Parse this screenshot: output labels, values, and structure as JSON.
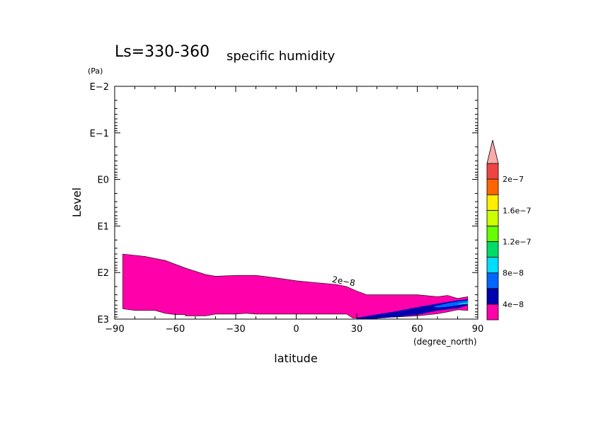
{
  "chart_data": {
    "type": "contour",
    "title": "Ls=330-360",
    "subtitle": "specific humidity",
    "xlabel": "latitude",
    "xunit": "(degree_north)",
    "ylabel": "Level",
    "yunit": "(Pa)",
    "xlim": [
      -90,
      90
    ],
    "ylim": [
      1000,
      0.01
    ],
    "yscale": "log",
    "xticks": [
      {
        "value": -90,
        "label": "−90"
      },
      {
        "value": -60,
        "label": "−60"
      },
      {
        "value": -30,
        "label": "−30"
      },
      {
        "value": 0,
        "label": "0"
      },
      {
        "value": 30,
        "label": "30"
      },
      {
        "value": 60,
        "label": "60"
      },
      {
        "value": 90,
        "label": "90"
      }
    ],
    "yticks": [
      {
        "value": 0.01,
        "label": "E−2"
      },
      {
        "value": 0.1,
        "label": "E−1"
      },
      {
        "value": 1,
        "label": "E0"
      },
      {
        "value": 10,
        "label": "E1"
      },
      {
        "value": 100,
        "label": "E2"
      },
      {
        "value": 1000,
        "label": "E3"
      }
    ],
    "contour_label": {
      "text": "2e−8",
      "lat": 22,
      "level": 150
    },
    "colorbar": {
      "labels": [
        {
          "text": "4e−8",
          "value": 4e-08
        },
        {
          "text": "8e−8",
          "value": 8e-08
        },
        {
          "text": "1.2e−7",
          "value": 1.2e-07
        },
        {
          "text": "1.6e−7",
          "value": 1.6e-07
        },
        {
          "text": "2e−7",
          "value": 2e-07
        }
      ],
      "levels": [
        2e-08,
        4e-08,
        6e-08,
        8e-08,
        1e-07,
        1.2e-07,
        1.4e-07,
        1.6e-07,
        1.8e-07,
        2e-07,
        2.2e-07
      ],
      "colors": [
        "#ff00aa",
        "#0000b0",
        "#0066ff",
        "#00ddff",
        "#00dd66",
        "#66ff00",
        "#ccff00",
        "#ffee00",
        "#ff6600",
        "#ee4444"
      ],
      "overflow_color": "#ffaaaa"
    },
    "regions": [
      {
        "name": "2e-8 to 4e-8",
        "color": "#ff00aa",
        "boundary": [
          [
            -86,
            40
          ],
          [
            -75,
            45
          ],
          [
            -65,
            55
          ],
          [
            -55,
            80
          ],
          [
            -45,
            110
          ],
          [
            -40,
            120
          ],
          [
            -30,
            115
          ],
          [
            -20,
            115
          ],
          [
            -10,
            130
          ],
          [
            0,
            150
          ],
          [
            10,
            165
          ],
          [
            20,
            180
          ],
          [
            25,
            200
          ],
          [
            30,
            250
          ],
          [
            35,
            300
          ],
          [
            50,
            300
          ],
          [
            60,
            300
          ],
          [
            70,
            330
          ],
          [
            75,
            310
          ],
          [
            80,
            360
          ],
          [
            85,
            330
          ],
          [
            85,
            650
          ],
          [
            80,
            630
          ],
          [
            75,
            700
          ],
          [
            70,
            770
          ],
          [
            60,
            850
          ],
          [
            50,
            900
          ],
          [
            40,
            930
          ],
          [
            30,
            950
          ],
          [
            28,
            950
          ],
          [
            25,
            780
          ],
          [
            0,
            780
          ],
          [
            -10,
            780
          ],
          [
            -20,
            780
          ],
          [
            -25,
            750
          ],
          [
            -30,
            780
          ],
          [
            -40,
            780
          ],
          [
            -45,
            850
          ],
          [
            -50,
            850
          ],
          [
            -55,
            850
          ],
          [
            -55,
            800
          ],
          [
            -60,
            800
          ],
          [
            -65,
            750
          ],
          [
            -70,
            650
          ],
          [
            -80,
            650
          ],
          [
            -86,
            600
          ]
        ]
      },
      {
        "name": "4e-8 to 6e-8",
        "color": "#0000b0",
        "boundary": [
          [
            30,
            950
          ],
          [
            40,
            800
          ],
          [
            50,
            680
          ],
          [
            60,
            560
          ],
          [
            70,
            470
          ],
          [
            80,
            400
          ],
          [
            85,
            380
          ],
          [
            85,
            500
          ],
          [
            80,
            580
          ],
          [
            70,
            650
          ],
          [
            60,
            800
          ],
          [
            45,
            930
          ],
          [
            35,
            1000
          ],
          [
            30,
            1000
          ]
        ]
      },
      {
        "name": "6e-8 to 8e-8",
        "color": "#0066ff",
        "boundary": [
          [
            68,
            540
          ],
          [
            75,
            460
          ],
          [
            82,
            410
          ],
          [
            85,
            400
          ],
          [
            85,
            450
          ],
          [
            80,
            500
          ],
          [
            75,
            540
          ],
          [
            70,
            560
          ]
        ]
      },
      {
        "name": "8e-8 to 1e-7",
        "color": "#00ddff",
        "boundary": [
          [
            80,
            480
          ],
          [
            83,
            450
          ],
          [
            85,
            440
          ],
          [
            85,
            470
          ],
          [
            82,
            480
          ]
        ]
      },
      {
        "name": "1e-7 to 1.2e-7",
        "color": "#00dd66",
        "boundary": [
          [
            82,
            470
          ],
          [
            84,
            455
          ],
          [
            85,
            452
          ],
          [
            85,
            468
          ],
          [
            83,
            472
          ]
        ]
      }
    ]
  }
}
